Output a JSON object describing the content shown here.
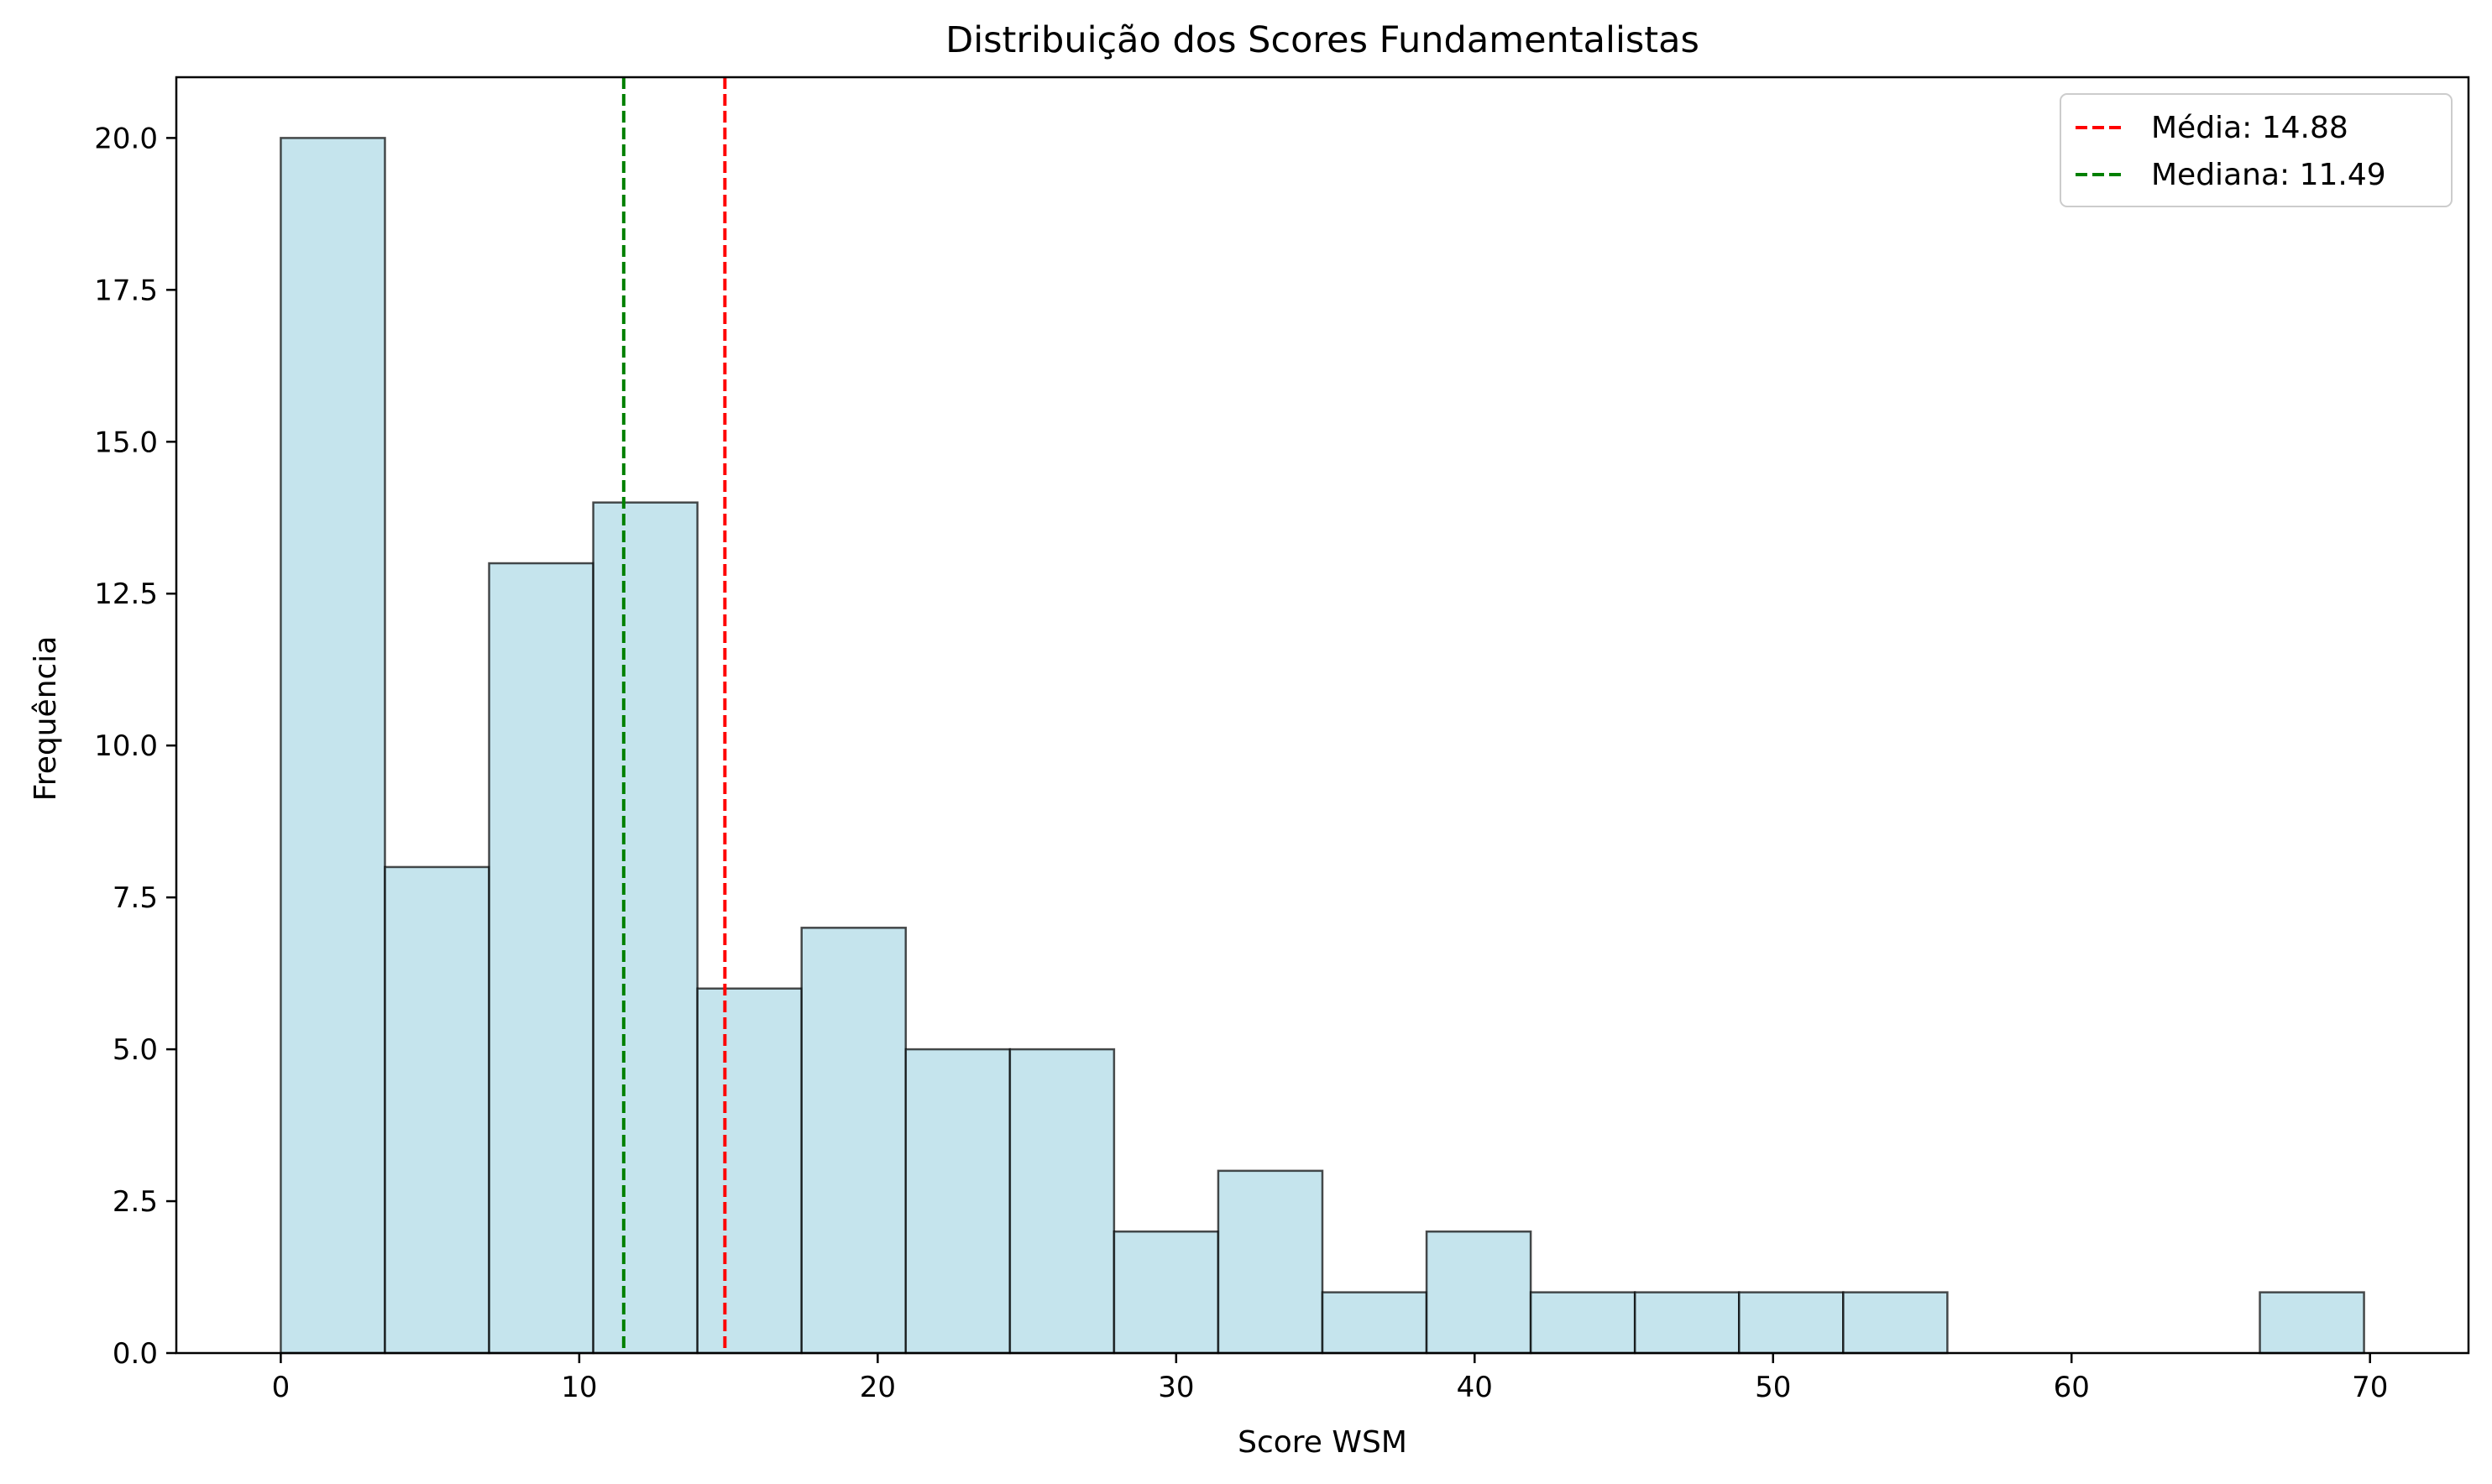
{
  "chart_data": {
    "type": "bar",
    "title": "Distribuição dos Scores Fundamentalistas",
    "xlabel": "Score WSM",
    "ylabel": "Frequência",
    "xlim": [
      -3.5,
      73.3
    ],
    "ylim": [
      0,
      21
    ],
    "x_ticks": [
      0,
      10,
      20,
      30,
      40,
      50,
      60,
      70
    ],
    "x_tick_labels": [
      "0",
      "10",
      "20",
      "30",
      "40",
      "50",
      "60",
      "70"
    ],
    "y_ticks": [
      0,
      2.5,
      5,
      7.5,
      10,
      12.5,
      15,
      17.5,
      20
    ],
    "y_tick_labels": [
      "0.0",
      "2.5",
      "5.0",
      "7.5",
      "10.0",
      "12.5",
      "15.0",
      "17.5",
      "20.0"
    ],
    "bin_edges": [
      0,
      3.49,
      6.98,
      10.47,
      13.96,
      17.45,
      20.94,
      24.43,
      27.92,
      31.41,
      34.9,
      38.39,
      41.88,
      45.37,
      48.86,
      52.35,
      55.84,
      59.33,
      62.82,
      66.31,
      69.8
    ],
    "counts": [
      20,
      8,
      13,
      14,
      6,
      7,
      5,
      5,
      2,
      3,
      1,
      2,
      1,
      1,
      1,
      1,
      0,
      0,
      0,
      1
    ],
    "bar_color": "#add8e6",
    "bar_edge_color": "#000000",
    "grid": false,
    "legend_position": "top-right",
    "reference_lines": [
      {
        "label": "Média: 14.88",
        "value": 14.88,
        "color": "#ff0000",
        "style": "dashed"
      },
      {
        "label": "Mediana: 11.49",
        "value": 11.49,
        "color": "#008000",
        "style": "dashed"
      }
    ]
  }
}
